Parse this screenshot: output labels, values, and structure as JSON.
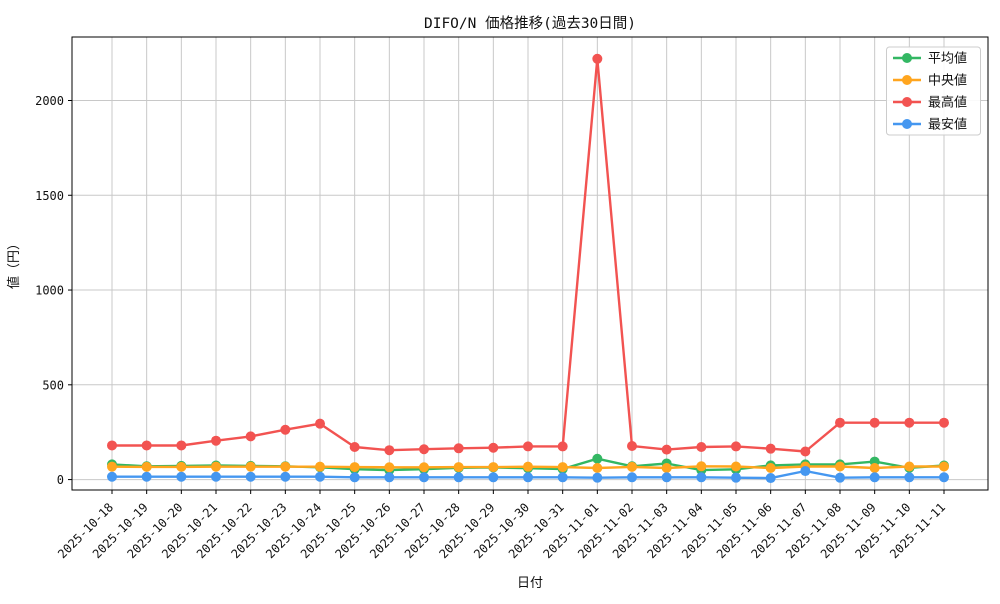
{
  "chart_data": {
    "type": "line",
    "title": "DIFO/N 価格推移(過去30日間)",
    "xlabel": "日付",
    "ylabel": "値（円）",
    "x": [
      "2025-10-18",
      "2025-10-19",
      "2025-10-20",
      "2025-10-21",
      "2025-10-22",
      "2025-10-23",
      "2025-10-24",
      "2025-10-25",
      "2025-10-26",
      "2025-10-27",
      "2025-10-28",
      "2025-10-29",
      "2025-10-30",
      "2025-10-31",
      "2025-11-01",
      "2025-11-02",
      "2025-11-03",
      "2025-11-04",
      "2025-11-05",
      "2025-11-06",
      "2025-11-07",
      "2025-11-08",
      "2025-11-09",
      "2025-11-10",
      "2025-11-11"
    ],
    "series": [
      {
        "name": "平均値",
        "color": "#33b763",
        "values": [
          80,
          70,
          72,
          74,
          72,
          70,
          65,
          55,
          50,
          55,
          62,
          64,
          60,
          56,
          110,
          70,
          85,
          50,
          54,
          75,
          80,
          80,
          95,
          62,
          74
        ]
      },
      {
        "name": "中央値",
        "color": "#ffa51e",
        "values": [
          68,
          67,
          67,
          68,
          68,
          68,
          68,
          66,
          65,
          65,
          66,
          66,
          68,
          66,
          61,
          67,
          61,
          70,
          69,
          61,
          69,
          69,
          61,
          69,
          69
        ]
      },
      {
        "name": "最高値",
        "color": "#f25351",
        "values": [
          180,
          180,
          180,
          205,
          228,
          263,
          295,
          172,
          155,
          160,
          165,
          168,
          175,
          175,
          2220,
          177,
          158,
          172,
          175,
          163,
          148,
          300,
          300,
          300,
          300
        ]
      },
      {
        "name": "最安値",
        "color": "#4597f0",
        "values": [
          15,
          15,
          15,
          15,
          15,
          15,
          15,
          12,
          12,
          12,
          12,
          12,
          12,
          12,
          10,
          12,
          12,
          12,
          10,
          8,
          45,
          10,
          12,
          12,
          12
        ]
      }
    ],
    "yticks": [
      0,
      500,
      1000,
      1500,
      2000
    ],
    "ylim": [
      -55,
      2335
    ],
    "grid": true,
    "grid_color": "#c8c8c8",
    "legend_position": "upper right",
    "x_tick_rotation": 45
  }
}
